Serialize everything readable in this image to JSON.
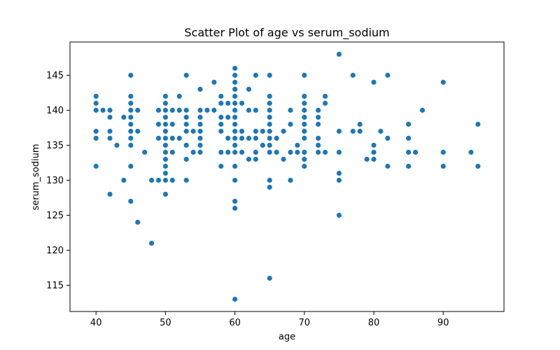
{
  "chart_data": {
    "type": "scatter",
    "title": "Scatter Plot of age vs serum_sodium",
    "xlabel": "age",
    "ylabel": "serum_sodium",
    "xlim": [
      36.25,
      98.75
    ],
    "ylim": [
      111.25,
      149.75
    ],
    "xticks": [
      40,
      50,
      60,
      70,
      80,
      90
    ],
    "yticks": [
      115,
      120,
      125,
      130,
      135,
      140,
      145
    ],
    "grid": false,
    "marker_color": "#1f77b4",
    "series": [
      {
        "points": [
          [
            40,
            142
          ],
          [
            40,
            141
          ],
          [
            40,
            140
          ],
          [
            40,
            137
          ],
          [
            40,
            136
          ],
          [
            40,
            132
          ],
          [
            41,
            140
          ],
          [
            42,
            140
          ],
          [
            42,
            139
          ],
          [
            42,
            137
          ],
          [
            42,
            136
          ],
          [
            42,
            128
          ],
          [
            43,
            135
          ],
          [
            44,
            139
          ],
          [
            44,
            130
          ],
          [
            45,
            145
          ],
          [
            45,
            142
          ],
          [
            45,
            141
          ],
          [
            45,
            140
          ],
          [
            45,
            139
          ],
          [
            45,
            138
          ],
          [
            45,
            137
          ],
          [
            45,
            136
          ],
          [
            45,
            135
          ],
          [
            45,
            132
          ],
          [
            45,
            127
          ],
          [
            46,
            140
          ],
          [
            46,
            137
          ],
          [
            46,
            124
          ],
          [
            47,
            134
          ],
          [
            48,
            130
          ],
          [
            48,
            121
          ],
          [
            49,
            140
          ],
          [
            49,
            138
          ],
          [
            49,
            136
          ],
          [
            49,
            130
          ],
          [
            50,
            142
          ],
          [
            50,
            141
          ],
          [
            50,
            140
          ],
          [
            50,
            139
          ],
          [
            50,
            138
          ],
          [
            50,
            137
          ],
          [
            50,
            136
          ],
          [
            50,
            135
          ],
          [
            50,
            134
          ],
          [
            50,
            133
          ],
          [
            50,
            132
          ],
          [
            50,
            131
          ],
          [
            50,
            130
          ],
          [
            50,
            128
          ],
          [
            51,
            140
          ],
          [
            51,
            138
          ],
          [
            51,
            136
          ],
          [
            51,
            134
          ],
          [
            51,
            130
          ],
          [
            52,
            142
          ],
          [
            52,
            140
          ],
          [
            52,
            136
          ],
          [
            53,
            145
          ],
          [
            53,
            140
          ],
          [
            53,
            139
          ],
          [
            53,
            138
          ],
          [
            53,
            137
          ],
          [
            53,
            135
          ],
          [
            53,
            133
          ],
          [
            53,
            130
          ],
          [
            54,
            137
          ],
          [
            54,
            134
          ],
          [
            55,
            143
          ],
          [
            55,
            140
          ],
          [
            55,
            139
          ],
          [
            55,
            138
          ],
          [
            55,
            137
          ],
          [
            55,
            136
          ],
          [
            55,
            135
          ],
          [
            55,
            134
          ],
          [
            56,
            140
          ],
          [
            57,
            144
          ],
          [
            57,
            140
          ],
          [
            58,
            142
          ],
          [
            58,
            141
          ],
          [
            58,
            139
          ],
          [
            58,
            138
          ],
          [
            58,
            137
          ],
          [
            58,
            134
          ],
          [
            58,
            132
          ],
          [
            59,
            141
          ],
          [
            59,
            139
          ],
          [
            59,
            136
          ],
          [
            59,
            134
          ],
          [
            60,
            146
          ],
          [
            60,
            145
          ],
          [
            60,
            144
          ],
          [
            60,
            143
          ],
          [
            60,
            142
          ],
          [
            60,
            141
          ],
          [
            60,
            140
          ],
          [
            60,
            139
          ],
          [
            60,
            138
          ],
          [
            60,
            137
          ],
          [
            60,
            136
          ],
          [
            60,
            135
          ],
          [
            60,
            134
          ],
          [
            60,
            132
          ],
          [
            60,
            130
          ],
          [
            60,
            127
          ],
          [
            60,
            126
          ],
          [
            60,
            113
          ],
          [
            61,
            141
          ],
          [
            61,
            137
          ],
          [
            61,
            136
          ],
          [
            61,
            134
          ],
          [
            62,
            143
          ],
          [
            62,
            140
          ],
          [
            62,
            136
          ],
          [
            62,
            133
          ],
          [
            63,
            145
          ],
          [
            63,
            140
          ],
          [
            63,
            137
          ],
          [
            63,
            136
          ],
          [
            63,
            134
          ],
          [
            63,
            133
          ],
          [
            64,
            137
          ],
          [
            64,
            135
          ],
          [
            65,
            145
          ],
          [
            65,
            142
          ],
          [
            65,
            141
          ],
          [
            65,
            140
          ],
          [
            65,
            139
          ],
          [
            65,
            138
          ],
          [
            65,
            137
          ],
          [
            65,
            136
          ],
          [
            65,
            135
          ],
          [
            65,
            134
          ],
          [
            65,
            130
          ],
          [
            65,
            129
          ],
          [
            65,
            116
          ],
          [
            66,
            136
          ],
          [
            66,
            134
          ],
          [
            67,
            137
          ],
          [
            67,
            133
          ],
          [
            68,
            140
          ],
          [
            68,
            138
          ],
          [
            68,
            134
          ],
          [
            68,
            130
          ],
          [
            69,
            135
          ],
          [
            69,
            134
          ],
          [
            70,
            145
          ],
          [
            70,
            142
          ],
          [
            70,
            141
          ],
          [
            70,
            140
          ],
          [
            70,
            139
          ],
          [
            70,
            138
          ],
          [
            70,
            137
          ],
          [
            70,
            136
          ],
          [
            70,
            134
          ],
          [
            70,
            133
          ],
          [
            70,
            132
          ],
          [
            72,
            140
          ],
          [
            72,
            139
          ],
          [
            72,
            138
          ],
          [
            72,
            136
          ],
          [
            72,
            135
          ],
          [
            72,
            134
          ],
          [
            73,
            142
          ],
          [
            73,
            141
          ],
          [
            73,
            134
          ],
          [
            75,
            148
          ],
          [
            75,
            137
          ],
          [
            75,
            134
          ],
          [
            75,
            131
          ],
          [
            75,
            130
          ],
          [
            75,
            125
          ],
          [
            77,
            145
          ],
          [
            77,
            137
          ],
          [
            78,
            138
          ],
          [
            78,
            137
          ],
          [
            79,
            133
          ],
          [
            80,
            144
          ],
          [
            80,
            135
          ],
          [
            80,
            134
          ],
          [
            80,
            133
          ],
          [
            81,
            137
          ],
          [
            82,
            145
          ],
          [
            82,
            136
          ],
          [
            82,
            132
          ],
          [
            85,
            138
          ],
          [
            85,
            136
          ],
          [
            85,
            134
          ],
          [
            85,
            132
          ],
          [
            86,
            134
          ],
          [
            87,
            140
          ],
          [
            90,
            144
          ],
          [
            90,
            134
          ],
          [
            90,
            132
          ],
          [
            94,
            134
          ],
          [
            95,
            138
          ],
          [
            95,
            132
          ]
        ]
      }
    ]
  }
}
